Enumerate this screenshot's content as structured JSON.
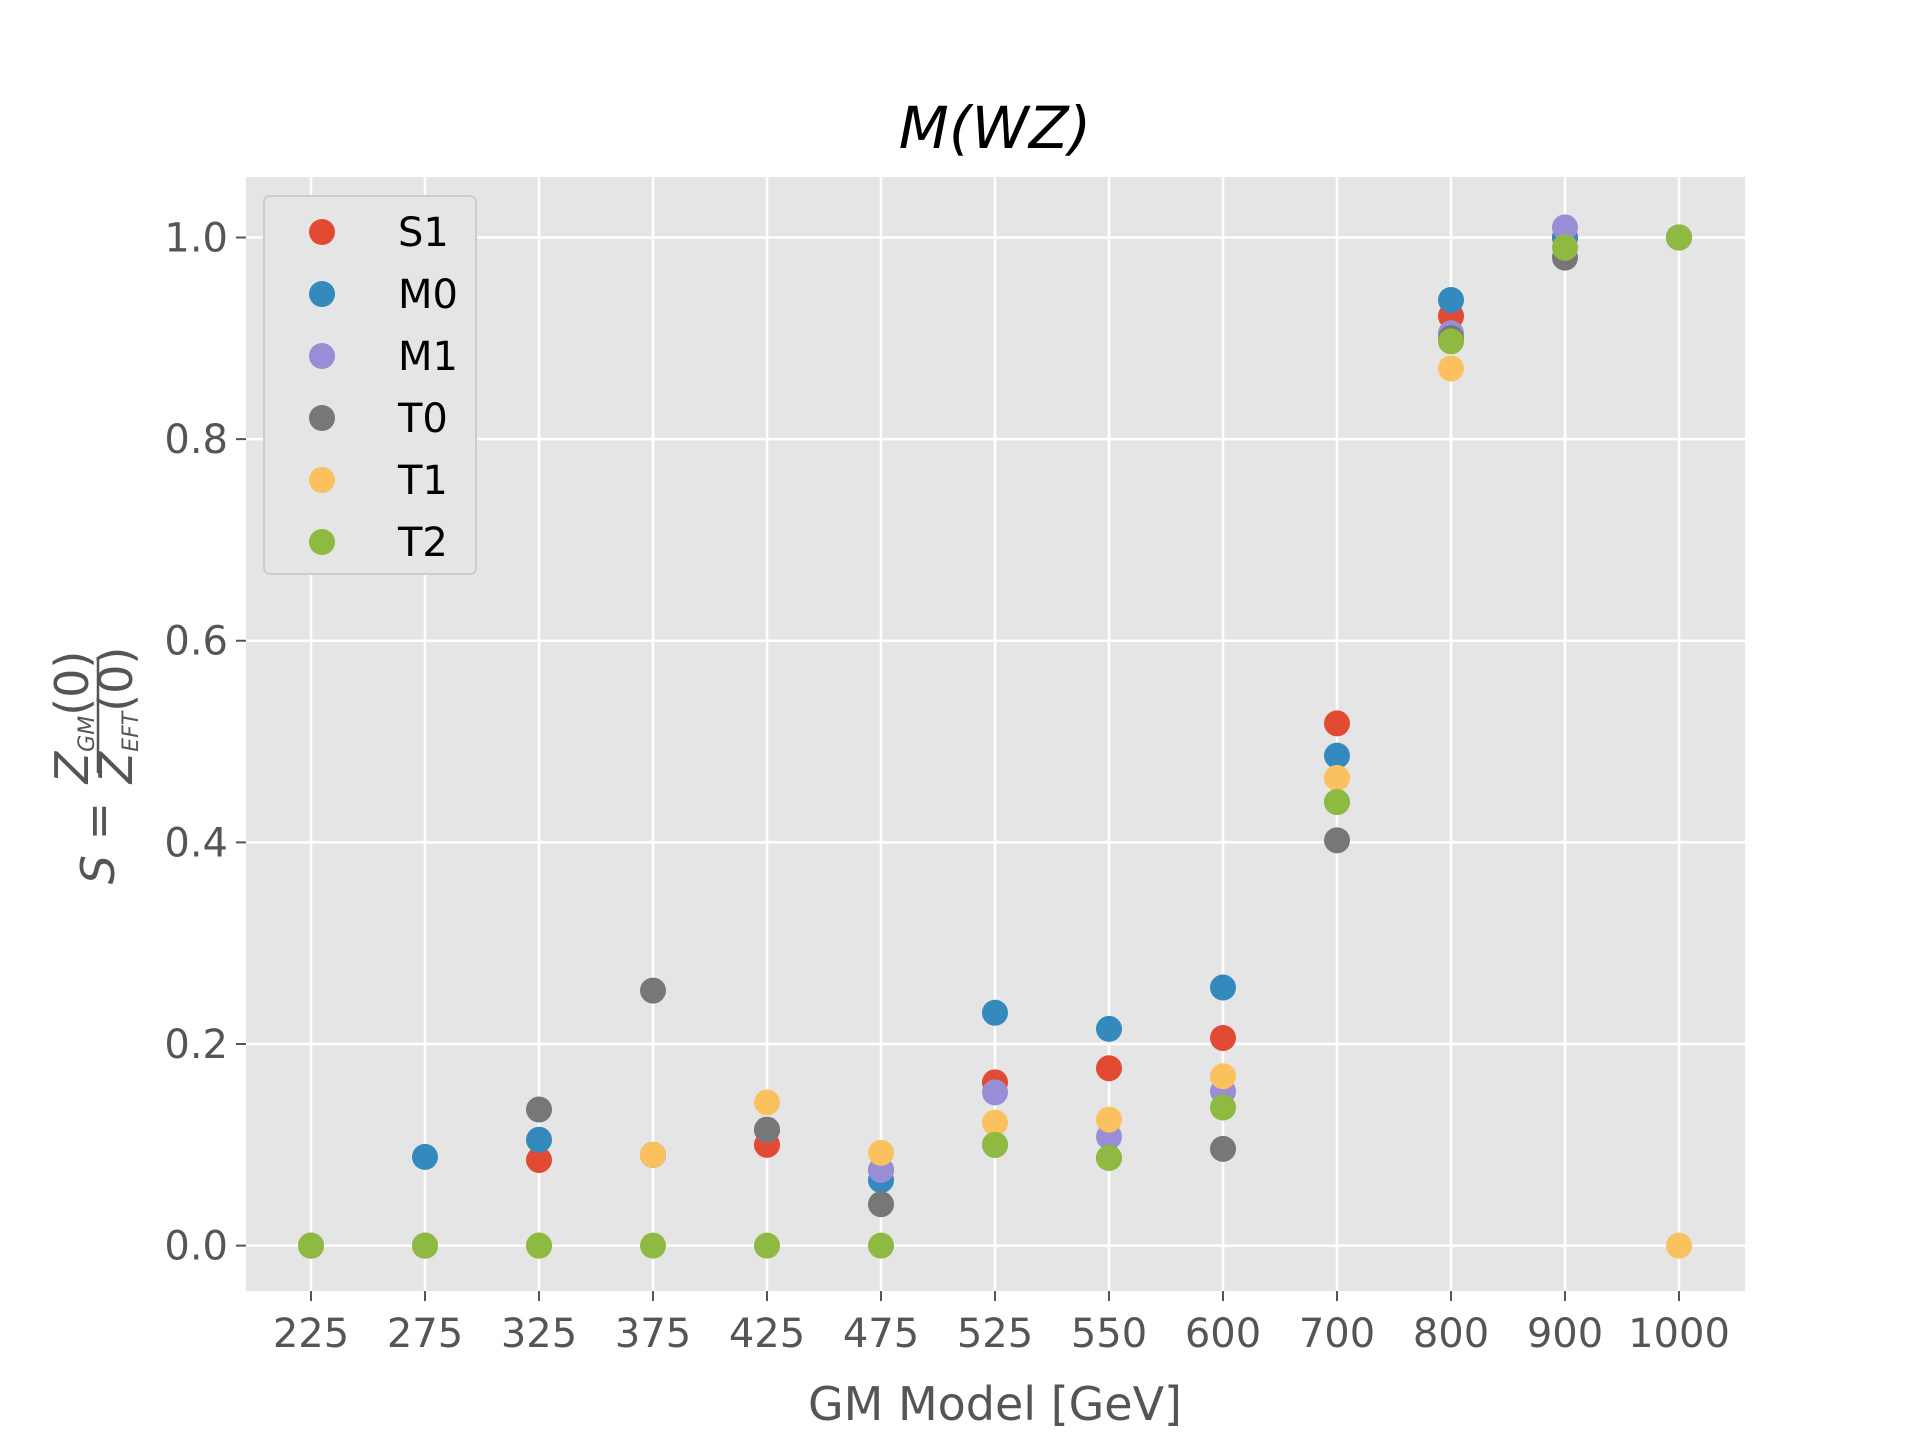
{
  "chart_data": {
    "type": "scatter",
    "title": "M(WZ)",
    "xlabel": "GM Model [GeV]",
    "ylabel": {
      "lhs": "S =",
      "numerator": "Z",
      "numerator_sub": "GM",
      "numerator_tail": "(0)",
      "denominator": "Z",
      "denominator_sub": "EFT",
      "denominator_tail": "(0)"
    },
    "categories": [
      "225",
      "275",
      "325",
      "375",
      "425",
      "475",
      "525",
      "550",
      "600",
      "700",
      "800",
      "900",
      "1000"
    ],
    "ylim": [
      -0.045,
      1.06
    ],
    "yticks": [
      "0.0",
      "0.2",
      "0.4",
      "0.6",
      "0.8",
      "1.0"
    ],
    "ytick_values": [
      0.0,
      0.2,
      0.4,
      0.6,
      0.8,
      1.0
    ],
    "grid": true,
    "legend_position": "upper-left",
    "series": [
      {
        "name": "S1",
        "color": "#E24A33",
        "values": [
          0,
          0,
          0.085,
          0.09,
          0.1,
          0.075,
          0.162,
          0.176,
          0.206,
          0.518,
          0.922,
          1.0,
          1.0
        ]
      },
      {
        "name": "M0",
        "color": "#348ABD",
        "values": [
          0,
          0.088,
          0.105,
          0.09,
          0.115,
          0.065,
          0.231,
          0.215,
          0.256,
          0.486,
          0.938,
          1.0,
          1.0
        ]
      },
      {
        "name": "M1",
        "color": "#988ED5",
        "values": [
          0,
          0,
          0,
          0.09,
          0.115,
          0.075,
          0.152,
          0.108,
          0.153,
          0.44,
          0.905,
          1.01,
          1.0
        ]
      },
      {
        "name": "T0",
        "color": "#777777",
        "values": [
          0,
          0,
          0.135,
          0.253,
          0.115,
          0.041,
          0.1,
          0.087,
          0.096,
          0.402,
          0.9,
          0.98,
          1.0
        ]
      },
      {
        "name": "T1",
        "color": "#FBC15E",
        "values": [
          0,
          0,
          0,
          0.09,
          0.142,
          0.092,
          0.122,
          0.125,
          0.168,
          0.464,
          0.87,
          0.99,
          0.0
        ]
      },
      {
        "name": "T2",
        "color": "#8EBA42",
        "values": [
          0,
          0,
          0,
          0,
          0,
          0,
          0.1,
          0.087,
          0.137,
          0.44,
          0.897,
          0.99,
          1.0
        ]
      }
    ]
  }
}
